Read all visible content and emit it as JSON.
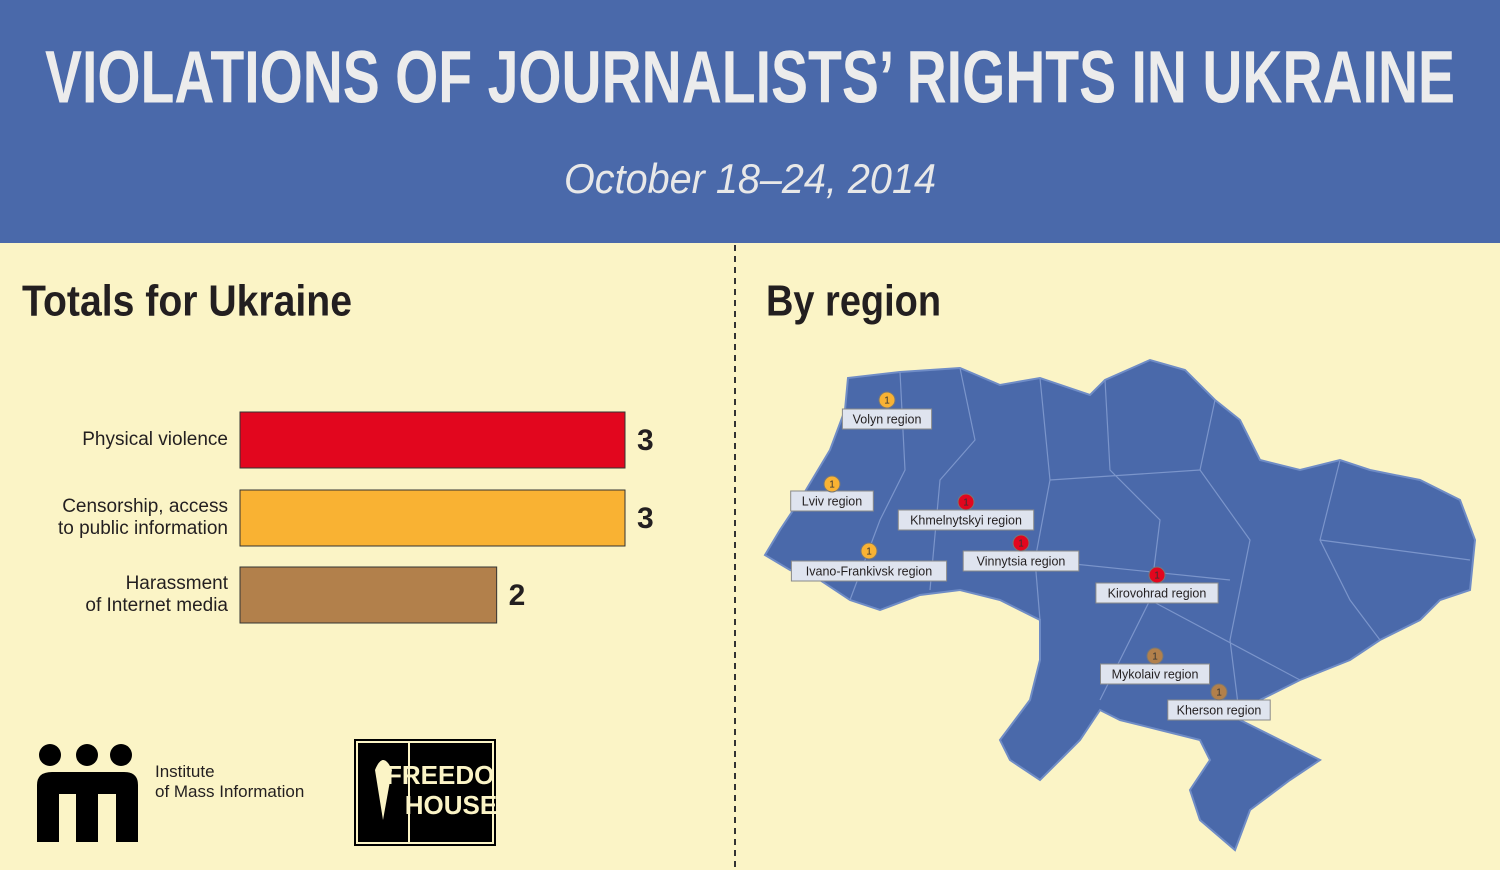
{
  "header": {
    "title": "VIOLATIONS OF JOURNALISTS’ RIGHTS IN UKRAINE",
    "subtitle": "October 18–24, 2014"
  },
  "chart_data": {
    "type": "bar",
    "orientation": "horizontal",
    "title": "Totals for Ukraine",
    "categories": [
      "Physical violence",
      "Censorship, access\nto public information",
      "Harassment\nof Internet media"
    ],
    "values": [
      3,
      3,
      2
    ],
    "colors": [
      "#e2061e",
      "#f9b233",
      "#b2804b"
    ]
  },
  "map": {
    "title": "By region",
    "regions": [
      {
        "name": "Volyn region",
        "count": 1,
        "color": "#f9b233"
      },
      {
        "name": "Lviv region",
        "count": 1,
        "color": "#f9b233"
      },
      {
        "name": "Ivano-Frankivsk region",
        "count": 1,
        "color": "#f9b233"
      },
      {
        "name": "Khmelnytskyi region",
        "count": 1,
        "color": "#e2061e"
      },
      {
        "name": "Vinnytsia region",
        "count": 1,
        "color": "#e2061e"
      },
      {
        "name": "Kirovohrad region",
        "count": 1,
        "color": "#e2061e"
      },
      {
        "name": "Mykolaiv region",
        "count": 1,
        "color": "#b2804b"
      },
      {
        "name": "Kherson region",
        "count": 1,
        "color": "#b2804b"
      }
    ]
  },
  "logos": {
    "imi": "Institute\nof Mass Information",
    "freedom_house": "FREEDOM\nHOUSE"
  }
}
